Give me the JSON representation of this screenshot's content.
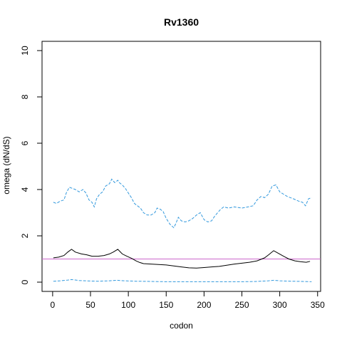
{
  "chart_data": {
    "type": "line",
    "title": "Rv1360",
    "xlabel": "codon",
    "ylabel": "omega (dN/dS)",
    "xlim": [
      -14,
      354
    ],
    "ylim": [
      -0.4,
      10.4
    ],
    "x_ticks": [
      0,
      50,
      100,
      150,
      200,
      250,
      300,
      350
    ],
    "y_ticks": [
      0,
      2,
      4,
      6,
      8,
      10
    ],
    "grid": false,
    "legend": "none",
    "reference_line": {
      "y": 1,
      "color": "#cc66cc"
    },
    "series": [
      {
        "role": "estimate",
        "color": "#000000",
        "style": "solid",
        "points": [
          [
            1,
            1.05
          ],
          [
            8,
            1.08
          ],
          [
            15,
            1.15
          ],
          [
            20,
            1.3
          ],
          [
            25,
            1.42
          ],
          [
            30,
            1.3
          ],
          [
            38,
            1.22
          ],
          [
            45,
            1.18
          ],
          [
            52,
            1.12
          ],
          [
            60,
            1.12
          ],
          [
            68,
            1.15
          ],
          [
            75,
            1.22
          ],
          [
            80,
            1.3
          ],
          [
            86,
            1.42
          ],
          [
            92,
            1.22
          ],
          [
            98,
            1.12
          ],
          [
            105,
            1.02
          ],
          [
            110,
            0.92
          ],
          [
            115,
            0.85
          ],
          [
            120,
            0.8
          ],
          [
            130,
            0.78
          ],
          [
            140,
            0.76
          ],
          [
            150,
            0.74
          ],
          [
            160,
            0.7
          ],
          [
            170,
            0.66
          ],
          [
            180,
            0.62
          ],
          [
            190,
            0.61
          ],
          [
            200,
            0.63
          ],
          [
            210,
            0.66
          ],
          [
            220,
            0.68
          ],
          [
            230,
            0.73
          ],
          [
            240,
            0.78
          ],
          [
            250,
            0.82
          ],
          [
            260,
            0.86
          ],
          [
            270,
            0.92
          ],
          [
            280,
            1.05
          ],
          [
            286,
            1.2
          ],
          [
            292,
            1.36
          ],
          [
            298,
            1.25
          ],
          [
            305,
            1.12
          ],
          [
            312,
            1.0
          ],
          [
            320,
            0.92
          ],
          [
            328,
            0.88
          ],
          [
            335,
            0.86
          ],
          [
            340,
            0.9
          ]
        ]
      },
      {
        "role": "upper",
        "color": "#3399dd",
        "style": "dashed",
        "points": [
          [
            1,
            3.45
          ],
          [
            5,
            3.4
          ],
          [
            10,
            3.5
          ],
          [
            15,
            3.55
          ],
          [
            18,
            3.85
          ],
          [
            22,
            4.1
          ],
          [
            26,
            4.05
          ],
          [
            30,
            4.0
          ],
          [
            35,
            3.9
          ],
          [
            40,
            4.0
          ],
          [
            44,
            3.85
          ],
          [
            48,
            3.55
          ],
          [
            52,
            3.45
          ],
          [
            55,
            3.25
          ],
          [
            58,
            3.6
          ],
          [
            62,
            3.8
          ],
          [
            66,
            3.9
          ],
          [
            70,
            4.15
          ],
          [
            75,
            4.25
          ],
          [
            78,
            4.45
          ],
          [
            82,
            4.3
          ],
          [
            86,
            4.4
          ],
          [
            88,
            4.3
          ],
          [
            92,
            4.2
          ],
          [
            96,
            4.05
          ],
          [
            100,
            3.85
          ],
          [
            104,
            3.65
          ],
          [
            108,
            3.4
          ],
          [
            112,
            3.3
          ],
          [
            116,
            3.2
          ],
          [
            120,
            3.0
          ],
          [
            125,
            2.9
          ],
          [
            130,
            2.9
          ],
          [
            135,
            3.0
          ],
          [
            138,
            3.2
          ],
          [
            142,
            3.15
          ],
          [
            146,
            3.05
          ],
          [
            150,
            2.75
          ],
          [
            155,
            2.5
          ],
          [
            160,
            2.35
          ],
          [
            163,
            2.55
          ],
          [
            166,
            2.8
          ],
          [
            170,
            2.65
          ],
          [
            175,
            2.6
          ],
          [
            180,
            2.65
          ],
          [
            185,
            2.75
          ],
          [
            190,
            2.9
          ],
          [
            195,
            3.0
          ],
          [
            200,
            2.7
          ],
          [
            205,
            2.6
          ],
          [
            210,
            2.65
          ],
          [
            214,
            2.85
          ],
          [
            218,
            3.0
          ],
          [
            222,
            3.15
          ],
          [
            226,
            3.25
          ],
          [
            232,
            3.2
          ],
          [
            240,
            3.25
          ],
          [
            250,
            3.2
          ],
          [
            258,
            3.25
          ],
          [
            265,
            3.3
          ],
          [
            270,
            3.55
          ],
          [
            275,
            3.7
          ],
          [
            280,
            3.65
          ],
          [
            285,
            3.8
          ],
          [
            290,
            4.15
          ],
          [
            295,
            4.2
          ],
          [
            300,
            3.9
          ],
          [
            305,
            3.8
          ],
          [
            310,
            3.7
          ],
          [
            318,
            3.6
          ],
          [
            325,
            3.5
          ],
          [
            330,
            3.45
          ],
          [
            334,
            3.3
          ],
          [
            338,
            3.6
          ],
          [
            342,
            3.65
          ]
        ]
      },
      {
        "role": "lower",
        "color": "#3399dd",
        "style": "dashed",
        "points": [
          [
            1,
            0.04
          ],
          [
            10,
            0.06
          ],
          [
            20,
            0.09
          ],
          [
            25,
            0.11
          ],
          [
            35,
            0.07
          ],
          [
            50,
            0.05
          ],
          [
            60,
            0.04
          ],
          [
            75,
            0.06
          ],
          [
            85,
            0.08
          ],
          [
            95,
            0.06
          ],
          [
            110,
            0.04
          ],
          [
            130,
            0.03
          ],
          [
            150,
            0.02
          ],
          [
            170,
            0.02
          ],
          [
            190,
            0.02
          ],
          [
            210,
            0.02
          ],
          [
            230,
            0.02
          ],
          [
            250,
            0.02
          ],
          [
            270,
            0.03
          ],
          [
            285,
            0.06
          ],
          [
            292,
            0.08
          ],
          [
            300,
            0.06
          ],
          [
            315,
            0.04
          ],
          [
            330,
            0.03
          ],
          [
            342,
            0.02
          ]
        ]
      }
    ]
  }
}
